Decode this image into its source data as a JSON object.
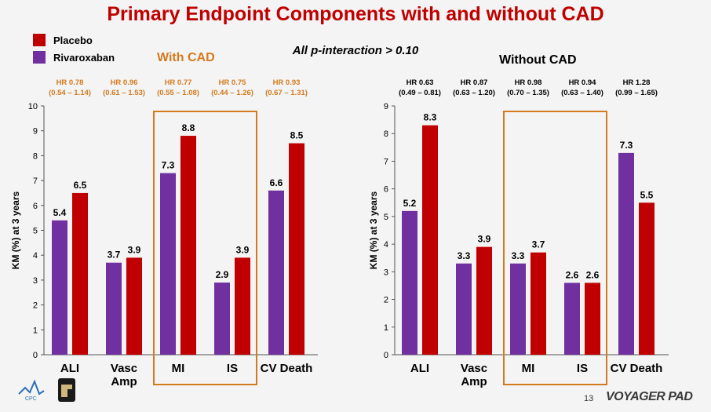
{
  "title": "Primary Endpoint Components with and without CAD",
  "subtitle": "All p-interaction > 0.10",
  "legend": [
    {
      "label": "Placebo",
      "color": "#c00000"
    },
    {
      "label": "Rivaroxaban",
      "color": "#7030a0"
    }
  ],
  "colors": {
    "placebo": "#c00000",
    "rivaroxaban": "#7030a0",
    "hr_with": "#d47a1e",
    "hr_without": "#000000",
    "box": "#d47a1e"
  },
  "footer": {
    "slide_number": "13",
    "brand": "VOYAGER PAD"
  },
  "chart_data": [
    {
      "type": "bar",
      "title": "With CAD",
      "ylabel": "KM (%) at 3 years",
      "ylim": [
        0,
        10
      ],
      "yticks": [
        "0",
        "1",
        "2",
        "3",
        "4",
        "5",
        "6",
        "7",
        "8",
        "9",
        "10"
      ],
      "categories": [
        "ALI",
        "Vasc\nAmp",
        "MI",
        "IS",
        "CV Death"
      ],
      "series": [
        {
          "name": "Rivaroxaban",
          "values": [
            5.4,
            3.7,
            7.3,
            2.9,
            6.6
          ]
        },
        {
          "name": "Placebo",
          "values": [
            6.5,
            3.9,
            8.8,
            3.9,
            8.5
          ]
        }
      ],
      "value_labels": {
        "Rivaroxaban": [
          "5.4",
          "3.7",
          "7.3",
          "2.9",
          "6.6"
        ],
        "Placebo": [
          "6.5",
          "3.9",
          "8.8",
          "3.9",
          "8.5"
        ]
      },
      "hr": [
        {
          "hr": "HR 0.78",
          "ci": "(0.54 – 1.14)"
        },
        {
          "hr": "HR 0.96",
          "ci": "(0.61 – 1.53)"
        },
        {
          "hr": "HR 0.77",
          "ci": "(0.55 – 1.08)"
        },
        {
          "hr": "HR 0.75",
          "ci": "(0.44 – 1.26)"
        },
        {
          "hr": "HR 0.93",
          "ci": "(0.67 – 1.31)"
        }
      ],
      "highlight": [
        "MI",
        "IS"
      ]
    },
    {
      "type": "bar",
      "title": "Without CAD",
      "ylabel": "KM (%) at 3 years",
      "ylim": [
        0,
        9
      ],
      "yticks": [
        "0",
        "1",
        "2",
        "3",
        "4",
        "5",
        "6",
        "7",
        "8",
        "9"
      ],
      "categories": [
        "ALI",
        "Vasc\nAmp",
        "MI",
        "IS",
        "CV Death"
      ],
      "series": [
        {
          "name": "Rivaroxaban",
          "values": [
            5.2,
            3.3,
            3.3,
            2.6,
            7.3
          ]
        },
        {
          "name": "Placebo",
          "values": [
            8.3,
            3.9,
            3.7,
            2.6,
            5.5
          ]
        }
      ],
      "value_labels": {
        "Rivaroxaban": [
          "5.2",
          "3.3",
          "3.3",
          "2.6",
          "7.3"
        ],
        "Placebo": [
          "8.3",
          "3.9",
          "3.7",
          "2.6",
          "5.5"
        ]
      },
      "hr": [
        {
          "hr": "HR 0.63",
          "ci": "(0.49 – 0.81)"
        },
        {
          "hr": "HR 0.87",
          "ci": "(0.63 – 1.20)"
        },
        {
          "hr": "HR 0.98",
          "ci": "(0.70 – 1.35)"
        },
        {
          "hr": "HR 0.94",
          "ci": "(0.63 – 1.40)"
        },
        {
          "hr": "HR 1.28",
          "ci": "(0.99 – 1.65)"
        }
      ],
      "highlight": [
        "MI",
        "IS"
      ]
    }
  ]
}
